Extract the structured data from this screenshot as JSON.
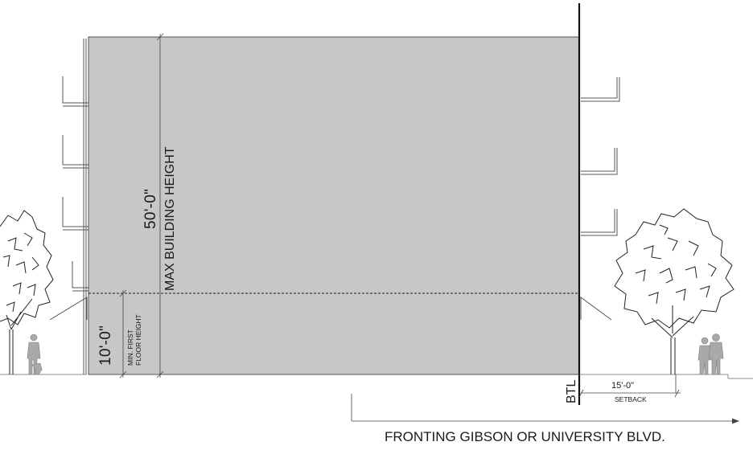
{
  "diagram": {
    "building_height_dim": "50'-0\"",
    "building_height_label": "MAX BUILDING HEIGHT",
    "first_floor_dim": "10'-0\"",
    "first_floor_label_line1": "MIN. FIRST",
    "first_floor_label_line2": "FLOOR HEIGHT",
    "btl_label": "BTL",
    "setback_dim": "15'-0\"",
    "setback_label": "SETBACK",
    "frontage_caption": "FRONTING GIBSON OR UNIVERSITY BLVD."
  },
  "colors": {
    "building_fill": "#c8c6c7",
    "line": "#1a1a1a",
    "figure": "#a9a9a9"
  }
}
